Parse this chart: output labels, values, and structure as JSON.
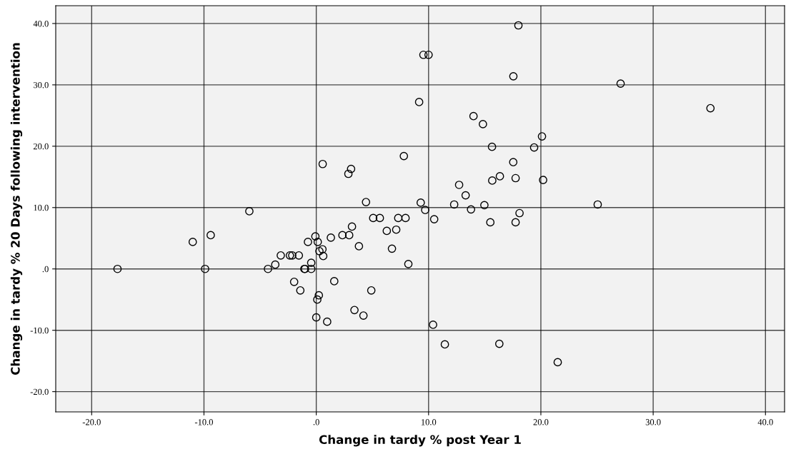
{
  "chart_data": {
    "type": "scatter",
    "xlabel": "Change in tardy % post Year 1",
    "ylabel": "Change in tardy % 20 Days following intervention",
    "x": [
      -17.7,
      -11.0,
      -9.4,
      -9.9,
      -5.96,
      -4.3,
      -3.65,
      -3.16,
      -2.35,
      -2.14,
      -1.55,
      -1.06,
      -1.0,
      -0.45,
      -0.45,
      -0.74,
      0.13,
      -0.08,
      0.55,
      0.28,
      0.62,
      -1.97,
      -1.42,
      0.23,
      0.09,
      0,
      0.97,
      1.3,
      1.6,
      2.33,
      2.93,
      3.18,
      3.4,
      3.8,
      4.2,
      4.43,
      4.9,
      5.07,
      5.66,
      6.28,
      6.74,
      7.12,
      7.3,
      7.95,
      8.2,
      9.3,
      9.7,
      10.4,
      10.5,
      0.57,
      3.1,
      2.86,
      7.8,
      9.16,
      9.54,
      10.0,
      14.0,
      14.84,
      17.55,
      18.0,
      20.1,
      15.65,
      19.4,
      17.54,
      16.35,
      15.67,
      17.75,
      20.2,
      12.72,
      13.3,
      12.28,
      14.97,
      25.06,
      13.78,
      18.1,
      15.5,
      17.75,
      27.1,
      35.1,
      11.45,
      16.3,
      21.5
    ],
    "values": [
      0,
      4.4,
      5.5,
      0,
      9.4,
      0,
      0.7,
      2.2,
      2.2,
      2.2,
      2.2,
      0,
      0,
      0,
      1.0,
      4.4,
      4.4,
      5.3,
      3.2,
      2.9,
      2.1,
      -2.1,
      -3.5,
      -4.3,
      -5.0,
      -7.9,
      -8.6,
      5.1,
      -2.0,
      5.5,
      5.5,
      6.9,
      -6.7,
      3.7,
      -7.6,
      10.9,
      -3.5,
      8.3,
      8.3,
      6.2,
      3.3,
      6.4,
      8.3,
      8.3,
      0.8,
      10.8,
      9.6,
      -9.1,
      8.1,
      17.1,
      16.3,
      15.5,
      18.4,
      27.2,
      34.9,
      34.9,
      24.9,
      23.6,
      31.4,
      39.7,
      21.6,
      19.9,
      19.8,
      17.4,
      15.1,
      14.4,
      14.8,
      14.5,
      13.7,
      12.0,
      10.5,
      10.4,
      10.5,
      9.7,
      9.1,
      7.6,
      7.6,
      30.2,
      26.2,
      -12.3,
      -12.2,
      -15.2
    ],
    "color": "#000000",
    "marker": "circle",
    "grid": true,
    "xlim": [
      -23.2,
      41.7
    ],
    "ylim": [
      -23.3,
      42.9
    ],
    "xticks": [
      {
        "value": -20,
        "label": "-20.0"
      },
      {
        "value": -10,
        "label": "-10.0"
      },
      {
        "value": 0,
        "label": ".0"
      },
      {
        "value": 10,
        "label": "10.0"
      },
      {
        "value": 20,
        "label": "20.0"
      },
      {
        "value": 30,
        "label": "30.0"
      },
      {
        "value": 40,
        "label": "40.0"
      }
    ],
    "yticks": [
      {
        "value": -20,
        "label": "-20.0"
      },
      {
        "value": -10,
        "label": "-10.0"
      },
      {
        "value": 0,
        "label": ".0"
      },
      {
        "value": 10,
        "label": "10.0"
      },
      {
        "value": 20,
        "label": "20.0"
      },
      {
        "value": 30,
        "label": "30.0"
      },
      {
        "value": 40,
        "label": "40.0"
      }
    ]
  }
}
